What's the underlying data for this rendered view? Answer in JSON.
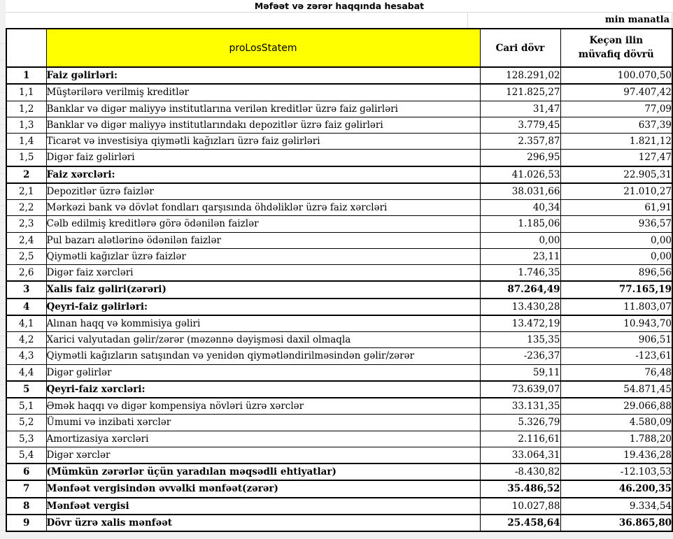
{
  "title": "Məfəət və zərər haqqında hesabat",
  "unit_note": "min manatla",
  "colors": {
    "header_highlight": "#FFFF00",
    "table_border": "#000000",
    "gridline": "#D9D9D9",
    "canvas_background": "#F1F1F1"
  },
  "table": {
    "header": {
      "number_col": "",
      "label_col": "proLosStatem",
      "current_col": "Cari dövr",
      "previous_col": "Keçən ilin müvafiq dövrü"
    },
    "rows": [
      {
        "num": "1",
        "label": "Faiz gəlirləri:",
        "current": "128.291,02",
        "previous": "100.070,50",
        "section": true,
        "bold_values": false
      },
      {
        "num": "1,1",
        "label": "Müştərilərə verilmiş kreditlər",
        "current": "121.825,27",
        "previous": "97.407,42",
        "section": false,
        "bold_values": false
      },
      {
        "num": "1,2",
        "label": "Banklar və digər maliyyə institutlarına verilən kreditlər üzrə faiz gəlirləri",
        "current": "31,47",
        "previous": "77,09",
        "section": false,
        "bold_values": false
      },
      {
        "num": "1,3",
        "label": "Banklar və digər maliyyə institutlarındakı depozitlər üzrə faiz gəlirləri",
        "current": "3.779,45",
        "previous": "637,39",
        "section": false,
        "bold_values": false
      },
      {
        "num": "1,4",
        "label": "Ticarət və investisiya qiymətli kağızları üzrə faiz gəlirləri",
        "current": "2.357,87",
        "previous": "1.821,12",
        "section": false,
        "bold_values": false
      },
      {
        "num": "1,5",
        "label": "Digər faiz gəlirləri",
        "current": "296,95",
        "previous": "127,47",
        "section": false,
        "bold_values": false
      },
      {
        "num": "2",
        "label": "Faiz xərcləri:",
        "current": "41.026,53",
        "previous": "22.905,31",
        "section": true,
        "bold_values": false
      },
      {
        "num": "2,1",
        "label": "Depozitlər üzrə faizlər",
        "current": "38.031,66",
        "previous": "21.010,27",
        "section": false,
        "bold_values": false
      },
      {
        "num": "2,2",
        "label": "Mərkəzi bank və dövlət fondları qarşısında öhdəliklər üzrə faiz xərcləri",
        "current": "40,34",
        "previous": "61,91",
        "section": false,
        "bold_values": false
      },
      {
        "num": "2,3",
        "label": "Cəlb edilmiş kreditlərə görə ödənilən faizlər",
        "current": "1.185,06",
        "previous": "936,57",
        "section": false,
        "bold_values": false
      },
      {
        "num": "2,4",
        "label": "Pul bazarı alətlərinə ödənilən faizlər",
        "current": "0,00",
        "previous": "0,00",
        "section": false,
        "bold_values": false
      },
      {
        "num": "2,5",
        "label": "Qiymətli kağızlar üzrə faizlər",
        "current": "23,11",
        "previous": "0,00",
        "section": false,
        "bold_values": false
      },
      {
        "num": "2,6",
        "label": "Digər faiz xərcləri",
        "current": "1.746,35",
        "previous": "896,56",
        "section": false,
        "bold_values": false
      },
      {
        "num": "3",
        "label": "Xalis faiz gəliri(zərəri)",
        "current": "87.264,49",
        "previous": "77.165,19",
        "section": true,
        "bold_values": true
      },
      {
        "num": "4",
        "label": "Qeyri-faiz gəlirləri:",
        "current": "13.430,28",
        "previous": "11.803,07",
        "section": true,
        "bold_values": false
      },
      {
        "num": "4,1",
        "label": "Alınan haqq və kommisiya gəliri",
        "current": "13.472,19",
        "previous": "10.943,70",
        "section": false,
        "bold_values": false
      },
      {
        "num": "4,2",
        "label": "Xarici valyutadan gəlir/zərər (məzənnə dəyişməsi daxil olmaqla",
        "current": "135,35",
        "previous": "906,51",
        "section": false,
        "bold_values": false
      },
      {
        "num": "4,3",
        "label": "Qiymətli kağızların satışından və yenidən qiymətləndirilməsindən gəlir/zərər",
        "current": "-236,37",
        "previous": "-123,61",
        "section": false,
        "bold_values": false
      },
      {
        "num": "4,4",
        "label": "Digər gəlirlər",
        "current": "59,11",
        "previous": "76,48",
        "section": false,
        "bold_values": false
      },
      {
        "num": "5",
        "label": "Qeyri-faiz xərcləri:",
        "current": "73.639,07",
        "previous": "54.871,45",
        "section": true,
        "bold_values": false
      },
      {
        "num": "5,1",
        "label": "Əmək haqqı və digər kompensiya növləri üzrə xərclər",
        "current": "33.131,35",
        "previous": "29.066,88",
        "section": false,
        "bold_values": false
      },
      {
        "num": "5,2",
        "label": "Ümumi və inzibati xərclər",
        "current": "5.326,79",
        "previous": "4.580,09",
        "section": false,
        "bold_values": false
      },
      {
        "num": "5,3",
        "label": "Amortizasiya xərcləri",
        "current": "2.116,61",
        "previous": "1.788,20",
        "section": false,
        "bold_values": false
      },
      {
        "num": "5,4",
        "label": "Digər xərclər",
        "current": "33.064,31",
        "previous": "19.436,28",
        "section": false,
        "bold_values": false
      },
      {
        "num": "6",
        "label": "(Mümkün zərərlər üçün yaradılan məqsədli ehtiyatlar)",
        "current": "-8.430,82",
        "previous": "-12.103,53",
        "section": true,
        "bold_values": false
      },
      {
        "num": "7",
        "label": "Mənfəət vergisindən əvvəlki mənfəət(zərər)",
        "current": "35.486,52",
        "previous": "46.200,35",
        "section": true,
        "bold_values": true
      },
      {
        "num": "8",
        "label": "Mənfəət vergisi",
        "current": "10.027,88",
        "previous": "9.334,54",
        "section": true,
        "bold_values": false
      },
      {
        "num": "9",
        "label": "Dövr üzrə xalis mənfəət",
        "current": "25.458,64",
        "previous": "36.865,80",
        "section": true,
        "bold_values": true
      }
    ]
  }
}
